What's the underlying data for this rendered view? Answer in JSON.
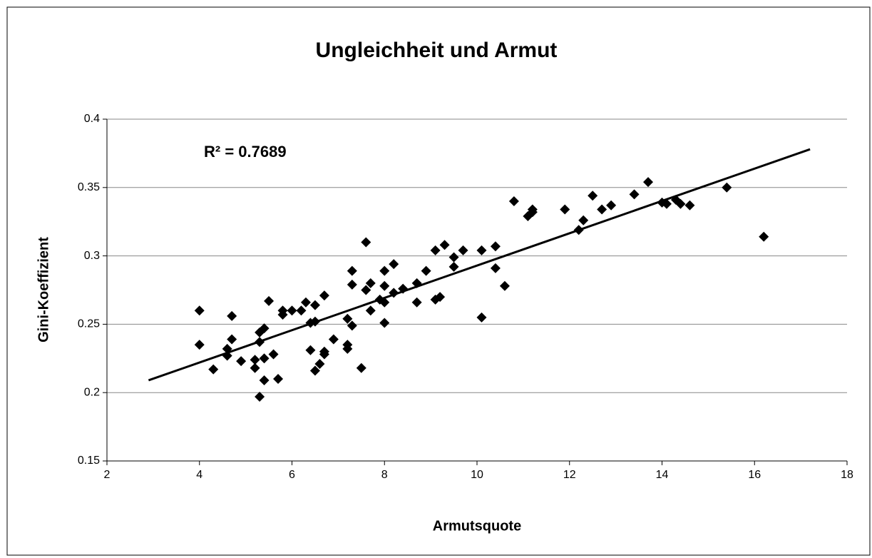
{
  "chart_data": {
    "type": "scatter",
    "title": "Ungleichheit und Armut",
    "xlabel": "Armutsquote",
    "ylabel": "Gini-Koeffizient",
    "annotation": "R² = 0.7689",
    "color": "#000000",
    "grid": true,
    "xlim": [
      2,
      18
    ],
    "xticks": [
      2,
      4,
      6,
      8,
      10,
      12,
      14,
      16,
      18
    ],
    "ylim": [
      0.15,
      0.4
    ],
    "yticks": [
      0.15,
      0.2,
      0.25,
      0.3,
      0.35,
      0.4
    ],
    "trendline": {
      "x": [
        2.9,
        17.2
      ],
      "y": [
        0.209,
        0.378
      ]
    },
    "x": [
      4.0,
      4.0,
      4.3,
      4.6,
      4.6,
      4.7,
      4.7,
      4.9,
      5.2,
      5.2,
      5.3,
      5.3,
      5.3,
      5.4,
      5.4,
      5.4,
      5.5,
      5.6,
      5.7,
      5.8,
      5.8,
      6.0,
      6.2,
      6.3,
      6.4,
      6.4,
      6.5,
      6.5,
      6.5,
      6.6,
      6.7,
      6.7,
      6.7,
      6.9,
      7.2,
      7.2,
      7.2,
      7.3,
      7.3,
      7.3,
      7.5,
      7.6,
      7.6,
      7.7,
      7.7,
      7.9,
      8.0,
      8.0,
      8.0,
      8.0,
      8.2,
      8.2,
      8.4,
      8.7,
      8.7,
      8.9,
      9.1,
      9.1,
      9.2,
      9.3,
      9.5,
      9.5,
      9.7,
      10.1,
      10.1,
      10.4,
      10.4,
      10.6,
      10.8,
      11.1,
      11.2,
      11.2,
      11.9,
      12.2,
      12.3,
      12.5,
      12.7,
      12.9,
      13.4,
      13.7,
      14.0,
      14.1,
      14.3,
      14.4,
      14.6,
      15.4,
      16.2
    ],
    "values": [
      0.26,
      0.235,
      0.217,
      0.232,
      0.227,
      0.256,
      0.239,
      0.223,
      0.224,
      0.218,
      0.244,
      0.237,
      0.197,
      0.247,
      0.225,
      0.209,
      0.267,
      0.228,
      0.21,
      0.26,
      0.257,
      0.26,
      0.26,
      0.266,
      0.251,
      0.231,
      0.252,
      0.264,
      0.216,
      0.221,
      0.271,
      0.228,
      0.23,
      0.239,
      0.254,
      0.235,
      0.232,
      0.249,
      0.289,
      0.279,
      0.218,
      0.31,
      0.275,
      0.26,
      0.28,
      0.268,
      0.289,
      0.278,
      0.266,
      0.251,
      0.294,
      0.273,
      0.276,
      0.28,
      0.266,
      0.289,
      0.304,
      0.268,
      0.27,
      0.308,
      0.299,
      0.292,
      0.304,
      0.304,
      0.255,
      0.307,
      0.291,
      0.278,
      0.34,
      0.329,
      0.332,
      0.334,
      0.334,
      0.319,
      0.326,
      0.344,
      0.334,
      0.337,
      0.345,
      0.354,
      0.339,
      0.338,
      0.341,
      0.338,
      0.337,
      0.35,
      0.314
    ]
  }
}
